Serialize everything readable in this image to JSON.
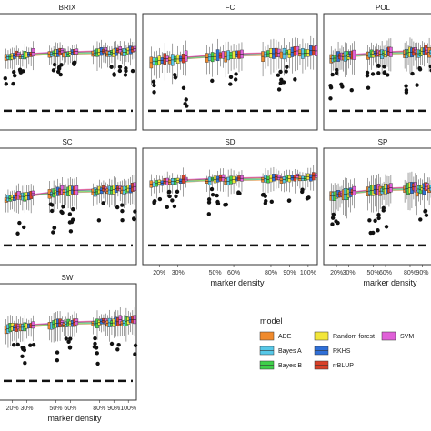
{
  "chart_data": {
    "type": "box",
    "x_categories": [
      "20%",
      "30%",
      "50%",
      "60%",
      "80%",
      "90%",
      "100%"
    ],
    "xlabel": "marker density",
    "models": [
      "ADE",
      "Bayes A",
      "Bayes B",
      "Random forest",
      "RKHS",
      "rrBLUP",
      "SVM"
    ],
    "legend": {
      "title": "model",
      "placement": "bottom-right",
      "entries": [
        {
          "label": "ADE",
          "color": "#f08a2c"
        },
        {
          "label": "Random forest",
          "color": "#f2e63a"
        },
        {
          "label": "SVM",
          "color": "#e060d8"
        },
        {
          "label": "Bayes A",
          "color": "#56c8e8"
        },
        {
          "label": "RKHS",
          "color": "#2f6fd8"
        },
        {
          "label": "Bayes B",
          "color": "#3fd04a"
        },
        {
          "label": "rrBLUP",
          "color": "#d84028"
        }
      ]
    },
    "reference_line": {
      "style": "dashed",
      "value": 0
    },
    "panels": [
      {
        "title": "BRIX",
        "medians": [
          0.6,
          0.61,
          0.63,
          0.63,
          0.64,
          0.64,
          0.65
        ],
        "spread": 0.07
      },
      {
        "title": "FC",
        "medians": [
          0.55,
          0.57,
          0.6,
          0.61,
          0.62,
          0.63,
          0.64
        ],
        "spread": 0.1
      },
      {
        "title": "POL",
        "medians": [
          0.58,
          0.6,
          0.62,
          0.63,
          0.64,
          0.64,
          0.65
        ],
        "spread": 0.09
      },
      {
        "title": "SC",
        "medians": [
          0.52,
          0.54,
          0.58,
          0.59,
          0.6,
          0.61,
          0.62
        ],
        "spread": 0.08
      },
      {
        "title": "SD",
        "medians": [
          0.68,
          0.7,
          0.72,
          0.72,
          0.73,
          0.73,
          0.74
        ],
        "spread": 0.07
      },
      {
        "title": "SP",
        "medians": [
          0.55,
          0.57,
          0.6,
          0.61,
          0.62,
          0.62,
          0.63
        ],
        "spread": 0.1
      },
      {
        "title": "SW",
        "medians": [
          0.58,
          0.6,
          0.62,
          0.63,
          0.64,
          0.64,
          0.65
        ],
        "spread": 0.08
      }
    ]
  }
}
